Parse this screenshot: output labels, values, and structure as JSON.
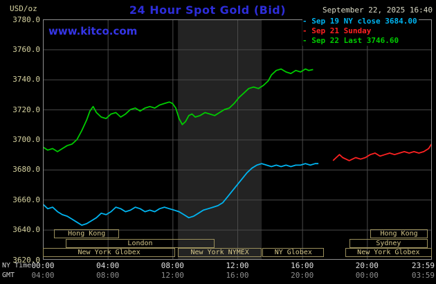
{
  "colors": {
    "background": "#000000",
    "brand_blue": "#2d2dd9",
    "watermark_blue": "#3535e6",
    "date_text": "#dcdcc8",
    "axis_tan": "#d6d2a0",
    "session_tan": "#d2c488",
    "session_border": "#9a8f5c",
    "grid": "#4a4a4a",
    "plot_border": "#909090",
    "session_band": "#232323",
    "series_cyan": "#00b4f0",
    "series_red": "#ff2222",
    "series_green": "#00cc00"
  },
  "header": {
    "unit_label": "USD/oz",
    "title": "24 Hour Spot Gold (Bid)",
    "datetime": "September 22, 2025 16:40",
    "watermark": "www.kitco.com"
  },
  "legend": [
    {
      "label": "Sep 19 NY close 3684.00",
      "color": "#00b4f0"
    },
    {
      "label": "Sep 21 Sunday",
      "color": "#ff2222"
    },
    {
      "label": "Sep 22 Last 3746.60",
      "color": "#00cc00"
    }
  ],
  "axes": {
    "ny_time_label": "NY Time",
    "gmt_label": "GMT",
    "y_labels": [
      "3780.0",
      "3760.0",
      "3740.0",
      "3720.0",
      "3700.0",
      "3680.0",
      "3660.0",
      "3640.0",
      "3620.0"
    ],
    "x_ny": [
      "00:00",
      "04:00",
      "08:00",
      "12:00",
      "16:00",
      "20:00",
      "23:59"
    ],
    "x_gmt": [
      "04:00",
      "08:00",
      "12:00",
      "16:00",
      "20:00",
      "00:00",
      "03:59"
    ]
  },
  "chart_data": {
    "type": "line",
    "title": "24 Hour Spot Gold (Bid)",
    "ylabel": "USD/oz",
    "y_axis": {
      "range": [
        3620,
        3780
      ],
      "tick_step": 20
    },
    "x_axis": {
      "range_hours": [
        0,
        24
      ],
      "tick_hours": [
        0,
        4,
        8,
        12,
        16,
        20,
        24
      ]
    },
    "grid": true,
    "legend_position": "top-right",
    "nymex_band_hours": [
      8.33,
      13.5
    ],
    "sessions": [
      {
        "row": 0,
        "label": "Hong Kong",
        "start": 0.7,
        "end": 4.7
      },
      {
        "row": 0,
        "label": "Hong Kong",
        "start": 20.2,
        "end": 23.75
      },
      {
        "row": 1,
        "label": "London",
        "start": 1.4,
        "end": 10.6
      },
      {
        "row": 1,
        "label": "Sydney",
        "start": 18.9,
        "end": 23.75
      },
      {
        "row": 2,
        "label": "New York Globex",
        "start": 0,
        "end": 8.17
      },
      {
        "row": 2,
        "label": "New York NYMEX",
        "start": 8.33,
        "end": 13.5
      },
      {
        "row": 2,
        "label": "NY Globex",
        "start": 13.55,
        "end": 17.35
      },
      {
        "row": 2,
        "label": "New York Globex",
        "start": 18.65,
        "end": 24
      }
    ],
    "series": [
      {
        "name": "Sep 19 NY close",
        "close_value": 3684.0,
        "color": "#00b4f0",
        "points": [
          [
            0,
            3657
          ],
          [
            0.3,
            3654
          ],
          [
            0.6,
            3655
          ],
          [
            0.9,
            3652
          ],
          [
            1.2,
            3650
          ],
          [
            1.5,
            3649
          ],
          [
            1.8,
            3647
          ],
          [
            2.1,
            3645
          ],
          [
            2.4,
            3643
          ],
          [
            2.7,
            3644
          ],
          [
            3.0,
            3646
          ],
          [
            3.3,
            3648
          ],
          [
            3.6,
            3651
          ],
          [
            3.9,
            3650
          ],
          [
            4.2,
            3652
          ],
          [
            4.5,
            3655
          ],
          [
            4.8,
            3654
          ],
          [
            5.1,
            3652
          ],
          [
            5.4,
            3653
          ],
          [
            5.7,
            3655
          ],
          [
            6.0,
            3654
          ],
          [
            6.3,
            3652
          ],
          [
            6.6,
            3653
          ],
          [
            6.9,
            3652
          ],
          [
            7.2,
            3654
          ],
          [
            7.5,
            3655
          ],
          [
            7.8,
            3654
          ],
          [
            8.1,
            3653
          ],
          [
            8.4,
            3652
          ],
          [
            8.7,
            3650
          ],
          [
            9.0,
            3648
          ],
          [
            9.3,
            3649
          ],
          [
            9.6,
            3651
          ],
          [
            9.9,
            3653
          ],
          [
            10.2,
            3654
          ],
          [
            10.5,
            3655
          ],
          [
            10.8,
            3656
          ],
          [
            11.1,
            3658
          ],
          [
            11.4,
            3662
          ],
          [
            11.7,
            3666
          ],
          [
            12.0,
            3670
          ],
          [
            12.3,
            3674
          ],
          [
            12.6,
            3678
          ],
          [
            12.9,
            3681
          ],
          [
            13.2,
            3683
          ],
          [
            13.5,
            3684
          ],
          [
            13.8,
            3683
          ],
          [
            14.1,
            3682
          ],
          [
            14.4,
            3683
          ],
          [
            14.7,
            3682
          ],
          [
            15.0,
            3683
          ],
          [
            15.3,
            3682
          ],
          [
            15.6,
            3683
          ],
          [
            15.9,
            3683
          ],
          [
            16.2,
            3684
          ],
          [
            16.5,
            3683
          ],
          [
            16.8,
            3684
          ],
          [
            17.0,
            3684
          ]
        ]
      },
      {
        "name": "Sep 21 Sunday",
        "color": "#ff2222",
        "points": [
          [
            17.9,
            3686
          ],
          [
            18.1,
            3688
          ],
          [
            18.3,
            3690
          ],
          [
            18.5,
            3688
          ],
          [
            18.7,
            3687
          ],
          [
            18.9,
            3686
          ],
          [
            19.1,
            3687
          ],
          [
            19.3,
            3688
          ],
          [
            19.6,
            3687
          ],
          [
            19.9,
            3688
          ],
          [
            20.2,
            3690
          ],
          [
            20.5,
            3691
          ],
          [
            20.8,
            3689
          ],
          [
            21.1,
            3690
          ],
          [
            21.4,
            3691
          ],
          [
            21.7,
            3690
          ],
          [
            22.0,
            3691
          ],
          [
            22.3,
            3692
          ],
          [
            22.6,
            3691
          ],
          [
            22.9,
            3692
          ],
          [
            23.2,
            3691
          ],
          [
            23.5,
            3692
          ],
          [
            23.8,
            3694
          ],
          [
            23.98,
            3697
          ]
        ]
      },
      {
        "name": "Sep 22 Last",
        "last_value": 3746.6,
        "color": "#00cc00",
        "points": [
          [
            0,
            3695
          ],
          [
            0.3,
            3693
          ],
          [
            0.6,
            3694
          ],
          [
            0.9,
            3692
          ],
          [
            1.2,
            3694
          ],
          [
            1.5,
            3696
          ],
          [
            1.8,
            3697
          ],
          [
            2.1,
            3700
          ],
          [
            2.4,
            3706
          ],
          [
            2.7,
            3713
          ],
          [
            2.9,
            3719
          ],
          [
            3.1,
            3722
          ],
          [
            3.3,
            3718
          ],
          [
            3.6,
            3715
          ],
          [
            3.9,
            3714
          ],
          [
            4.2,
            3717
          ],
          [
            4.5,
            3718
          ],
          [
            4.8,
            3715
          ],
          [
            5.1,
            3717
          ],
          [
            5.4,
            3720
          ],
          [
            5.7,
            3721
          ],
          [
            6.0,
            3719
          ],
          [
            6.3,
            3721
          ],
          [
            6.6,
            3722
          ],
          [
            6.9,
            3721
          ],
          [
            7.2,
            3723
          ],
          [
            7.5,
            3724
          ],
          [
            7.8,
            3725
          ],
          [
            8.0,
            3724
          ],
          [
            8.2,
            3721
          ],
          [
            8.4,
            3714
          ],
          [
            8.6,
            3710
          ],
          [
            8.8,
            3712
          ],
          [
            9.0,
            3716
          ],
          [
            9.2,
            3717
          ],
          [
            9.4,
            3715
          ],
          [
            9.7,
            3716
          ],
          [
            10.0,
            3718
          ],
          [
            10.3,
            3717
          ],
          [
            10.6,
            3716
          ],
          [
            10.9,
            3718
          ],
          [
            11.2,
            3720
          ],
          [
            11.5,
            3721
          ],
          [
            11.8,
            3724
          ],
          [
            12.1,
            3728
          ],
          [
            12.4,
            3731
          ],
          [
            12.7,
            3734
          ],
          [
            13.0,
            3735
          ],
          [
            13.3,
            3734
          ],
          [
            13.6,
            3736
          ],
          [
            13.9,
            3739
          ],
          [
            14.1,
            3743
          ],
          [
            14.4,
            3746
          ],
          [
            14.7,
            3747
          ],
          [
            15.0,
            3745
          ],
          [
            15.3,
            3744
          ],
          [
            15.6,
            3746
          ],
          [
            15.9,
            3745
          ],
          [
            16.2,
            3747
          ],
          [
            16.4,
            3746
          ],
          [
            16.67,
            3746.6
          ]
        ]
      }
    ]
  }
}
